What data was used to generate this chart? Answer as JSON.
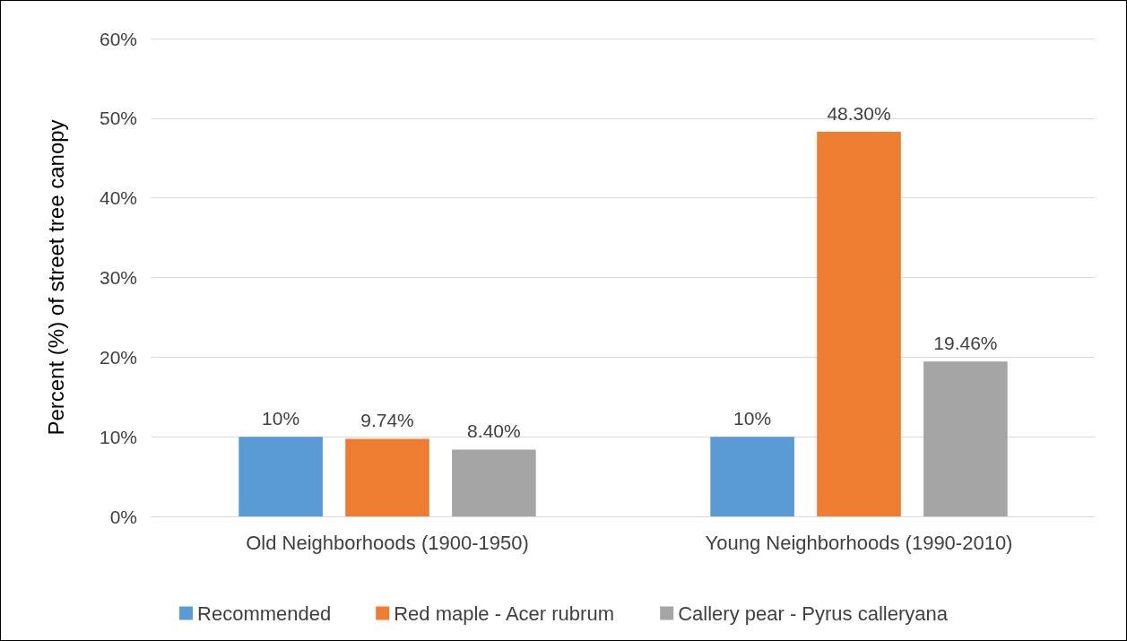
{
  "chart_data": {
    "type": "bar",
    "ylabel": "Percent (%) of street tree canopy",
    "categories": [
      "Old Neighborhoods (1900-1950)",
      "Young Neighborhoods (1990-2010)"
    ],
    "series": [
      {
        "name": "Recommended",
        "color": "#5b9bd5",
        "values": [
          10,
          10
        ],
        "value_labels": [
          "10%",
          "10%"
        ]
      },
      {
        "name": "Red maple - Acer rubrum",
        "color": "#ed7d31",
        "values": [
          9.74,
          48.3
        ],
        "value_labels": [
          "9.74%",
          "48.30%"
        ]
      },
      {
        "name": "Callery pear - Pyrus calleryana",
        "color": "#a5a5a5",
        "values": [
          8.4,
          19.46
        ],
        "value_labels": [
          "8.40%",
          "19.46%"
        ]
      }
    ],
    "ylim": [
      0,
      60
    ],
    "yticks": [
      {
        "value": 0,
        "label": "0%"
      },
      {
        "value": 10,
        "label": "10%"
      },
      {
        "value": 20,
        "label": "20%"
      },
      {
        "value": 30,
        "label": "30%"
      },
      {
        "value": 40,
        "label": "40%"
      },
      {
        "value": 50,
        "label": "50%"
      },
      {
        "value": 60,
        "label": "60%"
      }
    ],
    "grid": "y",
    "legend": "bottom"
  }
}
